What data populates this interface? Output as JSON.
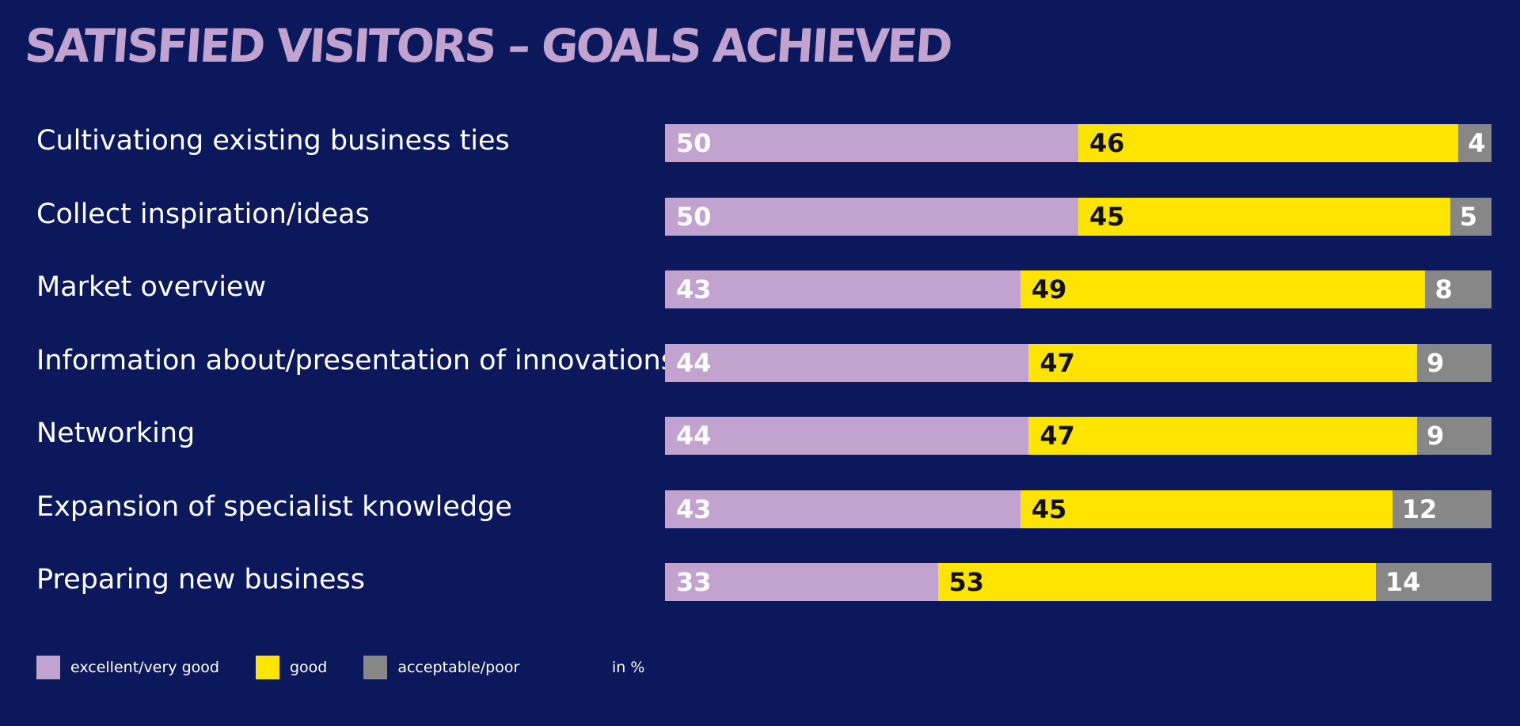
{
  "chart_data": {
    "type": "bar",
    "stacked": true,
    "orientation": "horizontal",
    "title": "SATISFIED VISITORS – GOALS ACHIEVED",
    "unit": "in %",
    "categories": [
      "Cultivationg existing business ties",
      "Collect inspiration/ideas",
      "Market overview",
      "Information about/presentation of innovations",
      "Networking",
      "Expansion of specialist knowledge",
      "Preparing new business"
    ],
    "series": [
      {
        "name": "excellent/very good",
        "color": "#c2a3cf",
        "values": [
          50,
          50,
          43,
          44,
          44,
          43,
          33
        ]
      },
      {
        "name": "good",
        "color": "#ffe400",
        "values": [
          46,
          45,
          49,
          47,
          47,
          45,
          53
        ]
      },
      {
        "name": "acceptable/poor",
        "color": "#878787",
        "values": [
          4,
          5,
          8,
          9,
          9,
          12,
          14
        ]
      }
    ],
    "xlim": [
      0,
      100
    ],
    "grid": false,
    "legend_position": "bottom-left"
  }
}
